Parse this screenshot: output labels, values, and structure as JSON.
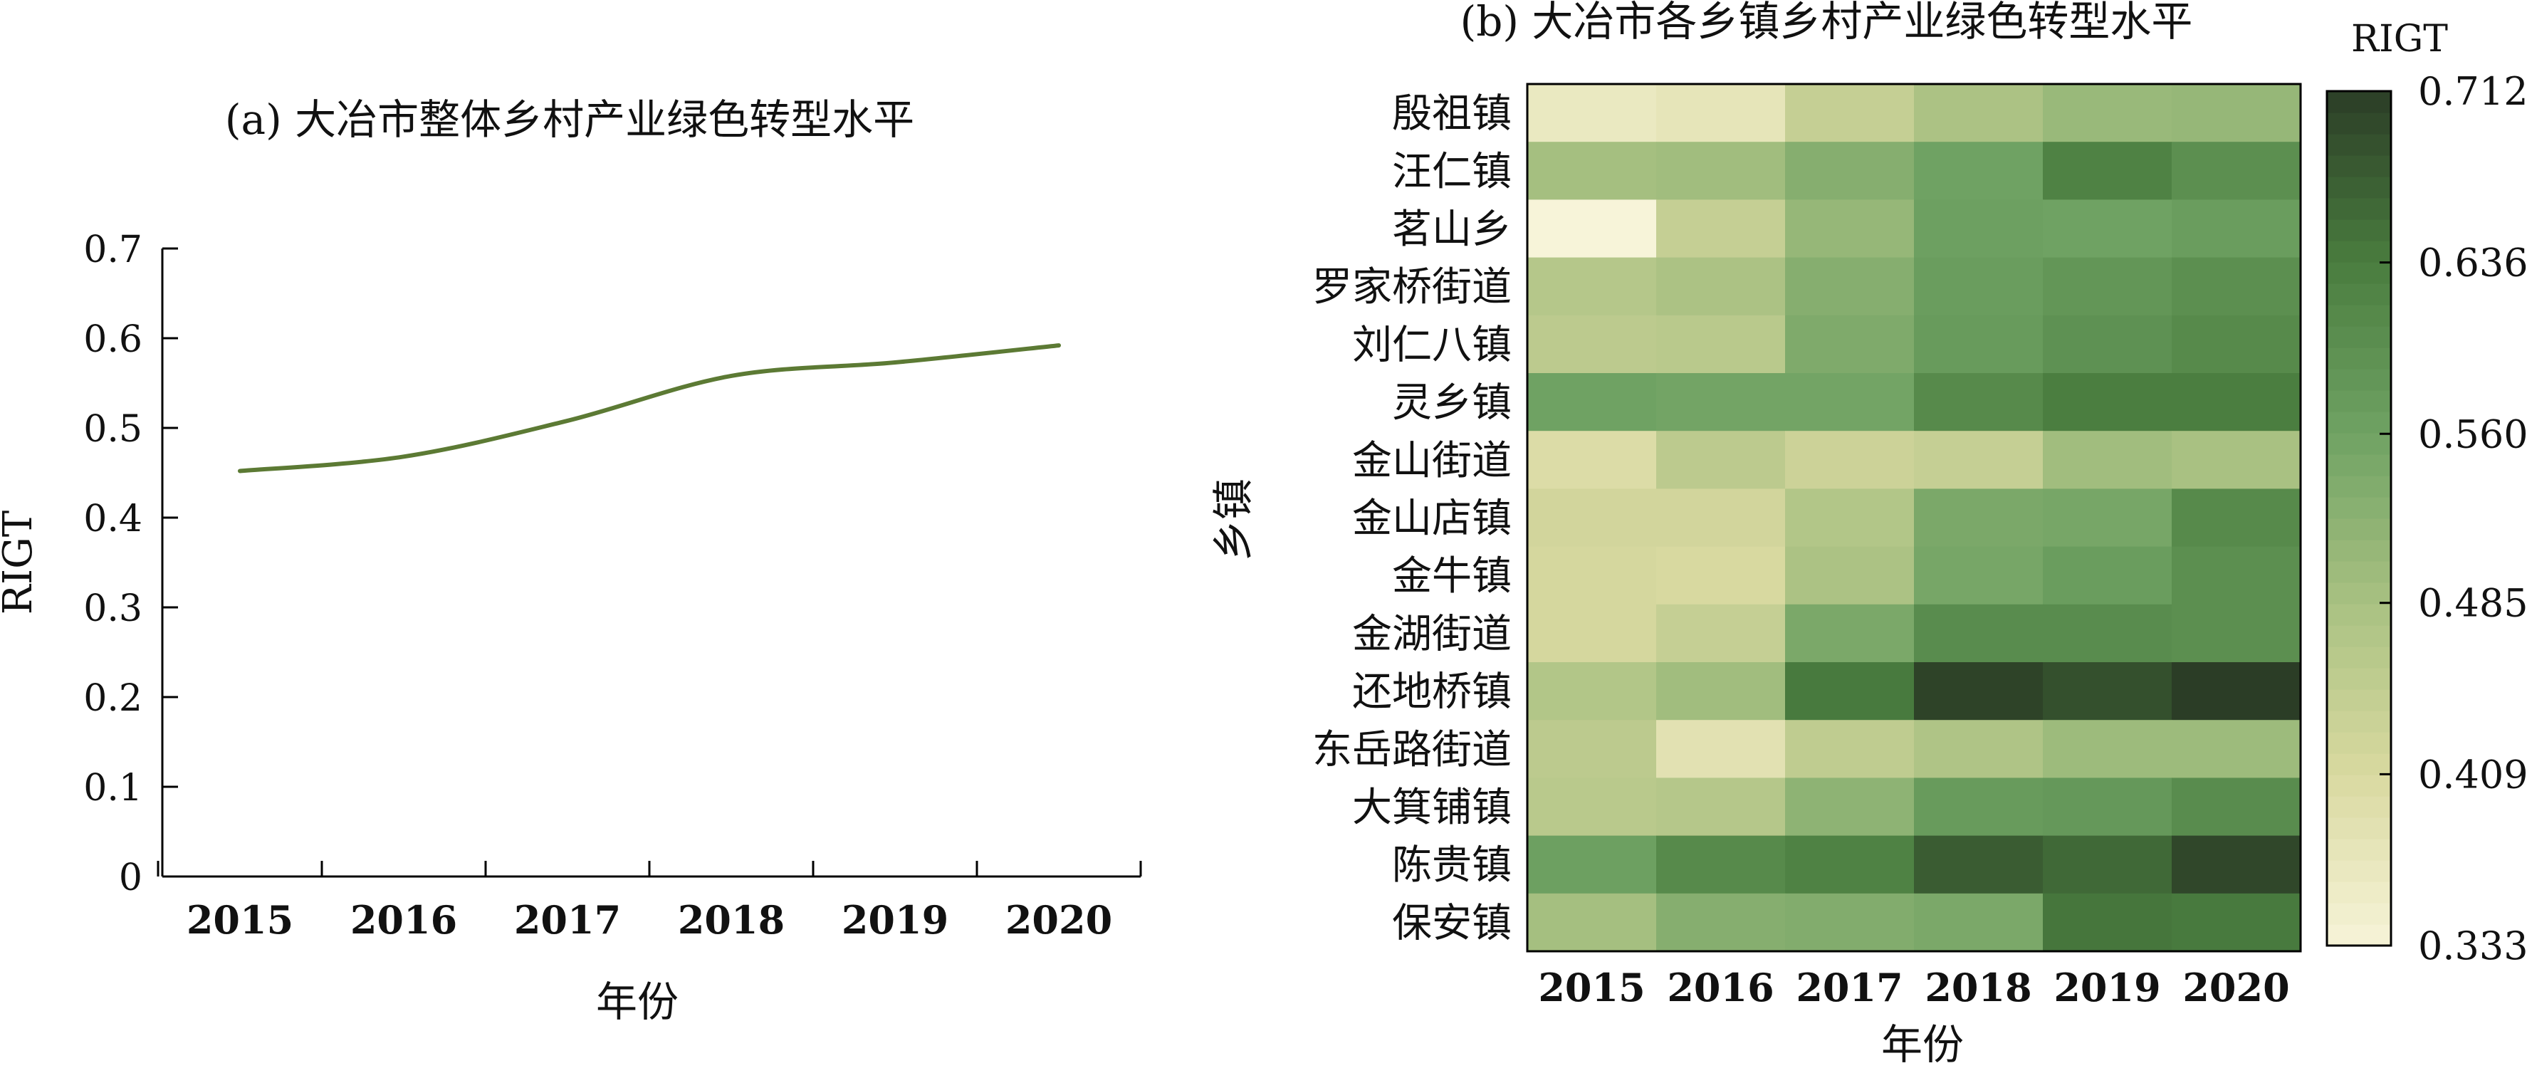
{
  "chart_data": [
    {
      "type": "line",
      "title": "(a) 大冶市整体乡村产业绿色转型水平",
      "xlabel": "年份",
      "ylabel": "RIGT",
      "x": [
        "2015",
        "2016",
        "2017",
        "2018",
        "2019",
        "2020"
      ],
      "xticks": [
        "2015",
        "2016",
        "2017",
        "2018",
        "2019",
        "2020"
      ],
      "yticks": [
        "0",
        "0.1",
        "0.2",
        "0.3",
        "0.4",
        "0.5",
        "0.6",
        "0.7"
      ],
      "ylim": [
        0,
        0.7
      ],
      "grid": false,
      "line_color": "#5c7a34",
      "series": [
        {
          "values": [
            0.452,
            0.468,
            0.508,
            0.558,
            0.573,
            0.592
          ]
        }
      ]
    },
    {
      "type": "heatmap",
      "title": "(b) 大冶市各乡镇乡村产业绿色转型水平",
      "xlabel": "年份",
      "ylabel": "乡镇",
      "colorbar_label": "RIGT",
      "x": [
        "2015",
        "2016",
        "2017",
        "2018",
        "2019",
        "2020"
      ],
      "y": [
        "殷祖镇",
        "汪仁镇",
        "茗山乡",
        "罗家桥街道",
        "刘仁八镇",
        "灵乡镇",
        "金山街道",
        "金山店镇",
        "金牛镇",
        "金湖街道",
        "还地桥镇",
        "东岳路街道",
        "大箕铺镇",
        "陈贵镇",
        "保安镇"
      ],
      "vmin": 0.333,
      "vmax": 0.712,
      "colorbar_ticks": [
        "0.333",
        "0.409",
        "0.485",
        "0.560",
        "0.636",
        "0.712"
      ],
      "colormap": [
        "#f7f4d9",
        "#d9d9a0",
        "#a9c182",
        "#6fa263",
        "#4a7d3f",
        "#2b3d26"
      ],
      "values": [
        [
          0.365,
          0.375,
          0.44,
          0.48,
          0.505,
          0.51
        ],
        [
          0.49,
          0.495,
          0.53,
          0.56,
          0.625,
          0.6
        ],
        [
          0.333,
          0.44,
          0.51,
          0.565,
          0.56,
          0.57
        ],
        [
          0.465,
          0.48,
          0.53,
          0.57,
          0.585,
          0.6
        ],
        [
          0.455,
          0.46,
          0.54,
          0.575,
          0.595,
          0.61
        ],
        [
          0.56,
          0.555,
          0.555,
          0.61,
          0.635,
          0.635
        ],
        [
          0.4,
          0.455,
          0.43,
          0.44,
          0.495,
          0.485
        ],
        [
          0.42,
          0.42,
          0.47,
          0.545,
          0.55,
          0.61
        ],
        [
          0.415,
          0.41,
          0.48,
          0.55,
          0.57,
          0.6
        ],
        [
          0.415,
          0.44,
          0.545,
          0.605,
          0.605,
          0.6
        ],
        [
          0.47,
          0.495,
          0.64,
          0.705,
          0.69,
          0.712
        ],
        [
          0.455,
          0.385,
          0.45,
          0.475,
          0.5,
          0.5
        ],
        [
          0.46,
          0.465,
          0.52,
          0.575,
          0.58,
          0.605
        ],
        [
          0.565,
          0.61,
          0.625,
          0.675,
          0.66,
          0.7
        ],
        [
          0.49,
          0.53,
          0.535,
          0.545,
          0.645,
          0.64
        ]
      ]
    }
  ]
}
